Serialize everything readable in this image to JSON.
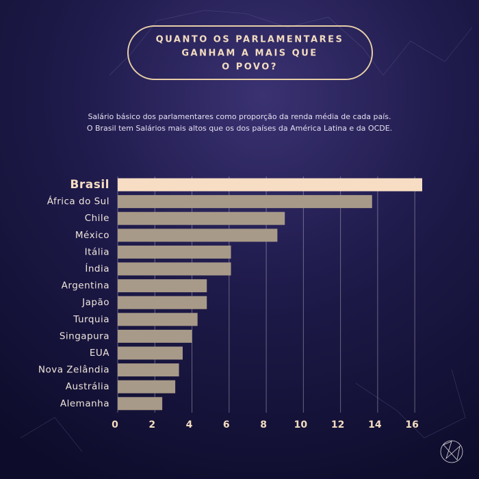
{
  "chart_data": {
    "type": "bar",
    "orientation": "horizontal",
    "title": [
      "QUANTO OS PARLAMENTARES",
      "GANHAM A MAIS QUE",
      "O POVO?"
    ],
    "subtitle": [
      "Salário básico dos parlamentares como proporção da renda média de cada país.",
      "O Brasil tem Salários mais altos que os dos países da América Latina e da OCDE."
    ],
    "categories": [
      "Brasil",
      "África do Sul",
      "Chile",
      "México",
      "Itália",
      "Índia",
      "Argentina",
      "Japão",
      "Turquia",
      "Singapura",
      "EUA",
      "Nova Zelândia",
      "Austrália",
      "Alemanha"
    ],
    "values": [
      16.4,
      13.7,
      9.0,
      8.6,
      6.1,
      6.1,
      4.8,
      4.8,
      4.3,
      4.0,
      3.5,
      3.3,
      3.1,
      2.4
    ],
    "colors": [
      "#f7ddc3",
      "#a89a88",
      "#a89a88",
      "#a89a88",
      "#a89a88",
      "#a89a88",
      "#a89a88",
      "#a89a88",
      "#a89a88",
      "#a89a88",
      "#a89a88",
      "#a89a88",
      "#a89a88",
      "#a89a88"
    ],
    "xlim": [
      0,
      16.4
    ],
    "xticks": [
      0,
      2,
      4,
      6,
      8,
      10,
      12,
      14,
      16
    ],
    "grid": true
  }
}
